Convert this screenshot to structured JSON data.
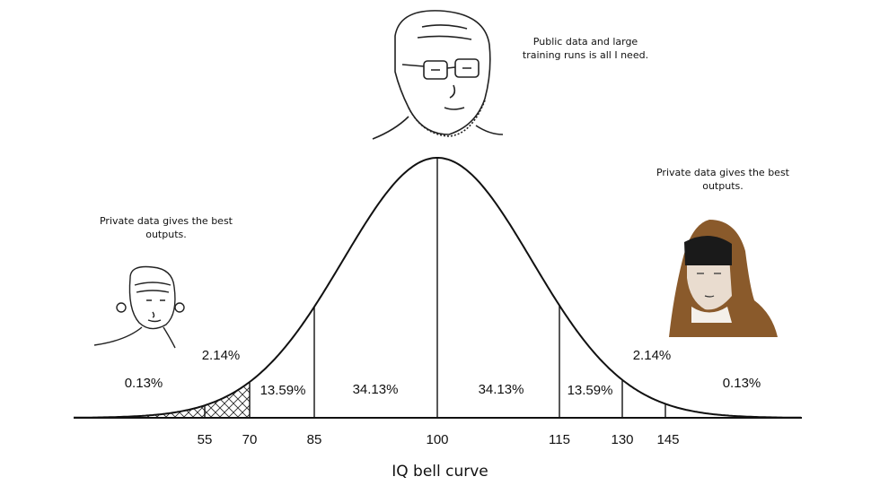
{
  "captions": {
    "top": [
      "Public data and large",
      "training runs is all I need."
    ],
    "left": [
      "Private data gives the best",
      "outputs."
    ],
    "right": [
      "Private data gives the best",
      "outputs."
    ]
  },
  "segments": [
    "0.13%",
    "2.14%",
    "13.59%",
    "34.13%",
    "34.13%",
    "13.59%",
    "2.14%",
    "0.13%"
  ],
  "axis_labels": [
    "55",
    "70",
    "85",
    "100",
    "115",
    "130",
    "145"
  ],
  "title": "IQ bell curve"
}
